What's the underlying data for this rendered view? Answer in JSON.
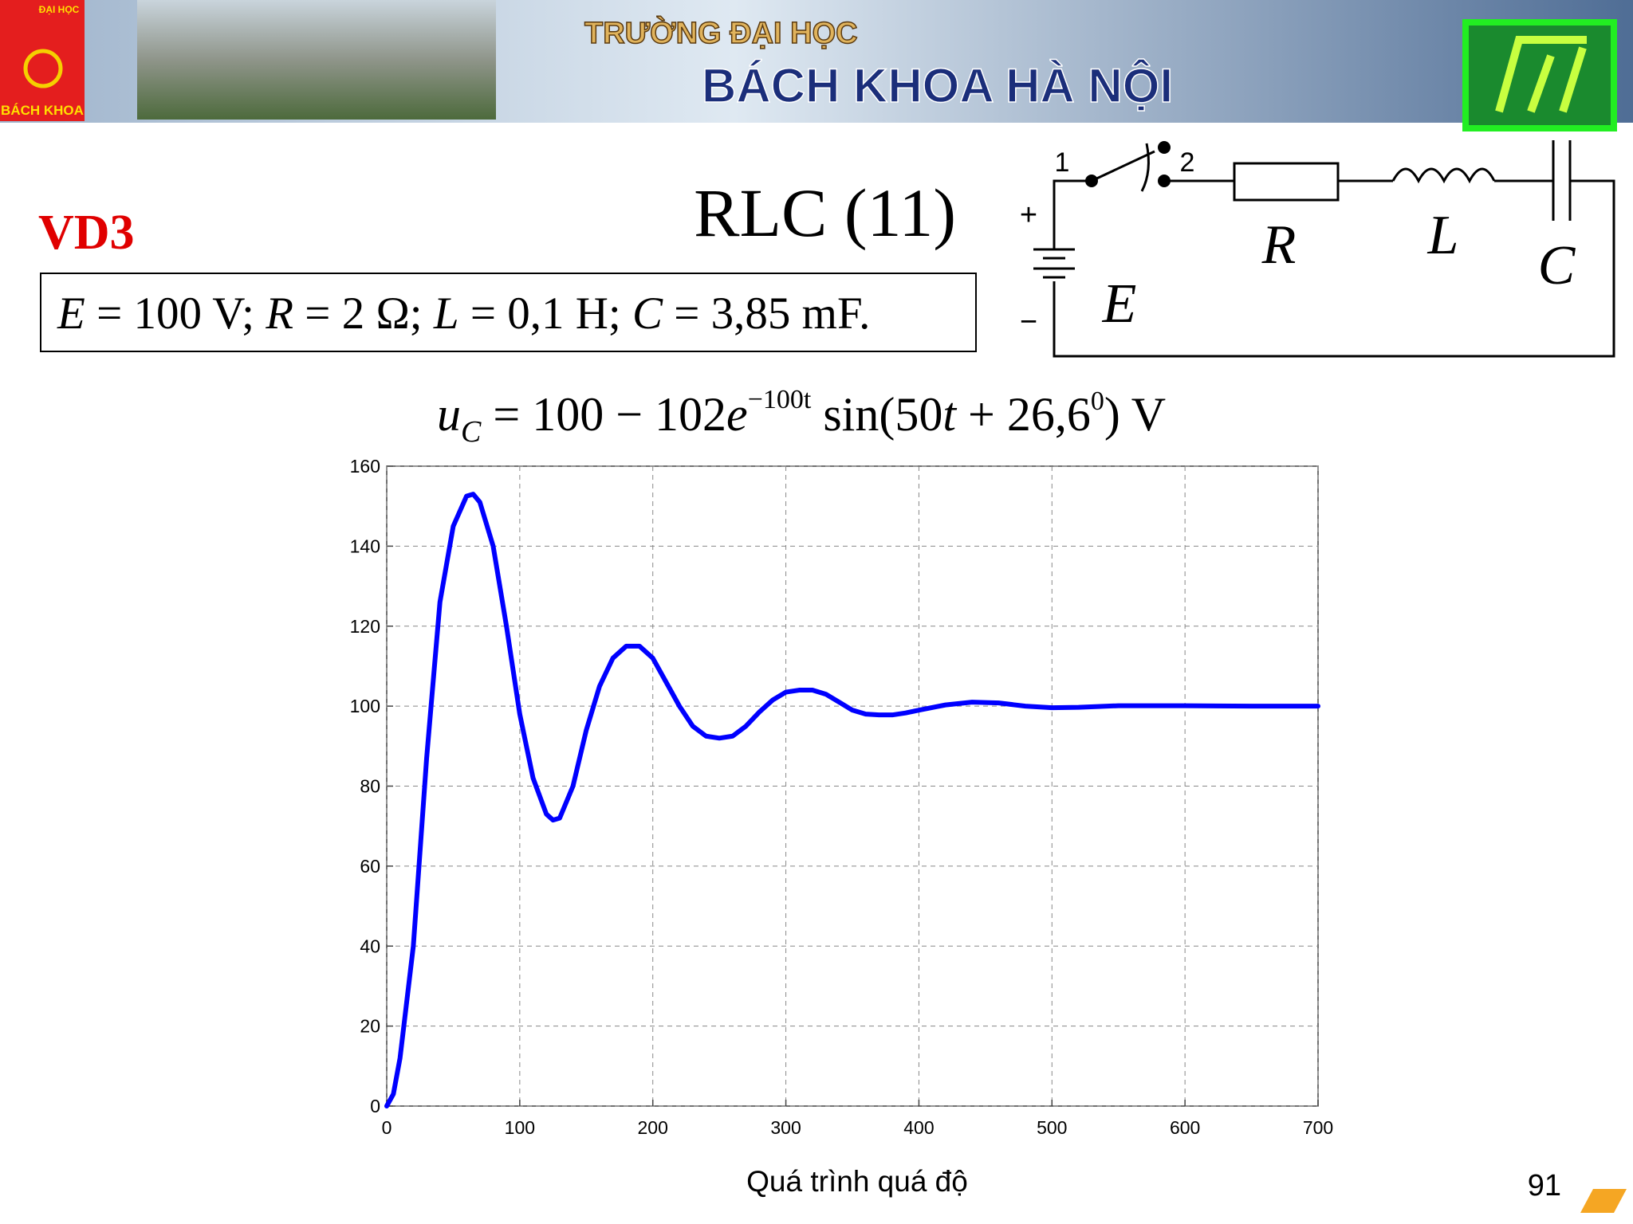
{
  "header": {
    "logo_top": "ĐẠI HỌC",
    "logo_bottom": "BÁCH KHOA",
    "line1": "TRƯỜNG ĐẠI HỌC",
    "line2": "BÁCH KHOA HÀ NỘI"
  },
  "slide": {
    "label": "VD3",
    "title": "RLC (11)",
    "params": [
      "E",
      " = 100 V; ",
      "R",
      " = 2 Ω; ",
      "L",
      " = 0,1 H; ",
      "C",
      " = 3,85 mF."
    ],
    "equation": [
      "u",
      "C",
      " = 100 − 102",
      "e",
      "−100t",
      " sin(50",
      "t",
      " + 26,6",
      "0",
      ") V"
    ],
    "circuit": {
      "switch_1": "1",
      "switch_2": "2",
      "plus": "+",
      "minus": "−",
      "R": "R",
      "L": "L",
      "C": "C",
      "E": "E"
    },
    "page_number": "91"
  },
  "chart_data": {
    "type": "line",
    "xlabel": "Quá trình quá độ",
    "color": "#0000ff",
    "x": [
      0,
      5,
      10,
      20,
      30,
      40,
      50,
      60,
      65,
      70,
      80,
      90,
      100,
      110,
      120,
      125,
      130,
      140,
      150,
      160,
      170,
      180,
      190,
      200,
      210,
      220,
      230,
      240,
      250,
      260,
      270,
      280,
      290,
      300,
      310,
      320,
      330,
      340,
      350,
      360,
      370,
      380,
      390,
      400,
      420,
      440,
      460,
      480,
      500,
      520,
      550,
      600,
      650,
      700
    ],
    "values": [
      0,
      3,
      12,
      40,
      87,
      126,
      145,
      152.5,
      153,
      151,
      140,
      120,
      98,
      82,
      73,
      71.5,
      72,
      80,
      94,
      105,
      112,
      115,
      115,
      112,
      106,
      100,
      95,
      92.5,
      92,
      92.5,
      95,
      98.5,
      101.5,
      103.5,
      104,
      104,
      103,
      101,
      99,
      98,
      97.8,
      97.8,
      98.3,
      99,
      100.3,
      101,
      100.8,
      100,
      99.6,
      99.7,
      100.1,
      100.1,
      100,
      100
    ],
    "xlim": [
      0,
      700
    ],
    "ylim": [
      0,
      160
    ],
    "xticks": [
      0,
      100,
      200,
      300,
      400,
      500,
      600,
      700
    ],
    "yticks": [
      0,
      20,
      40,
      60,
      80,
      100,
      120,
      140,
      160
    ],
    "grid": true
  }
}
